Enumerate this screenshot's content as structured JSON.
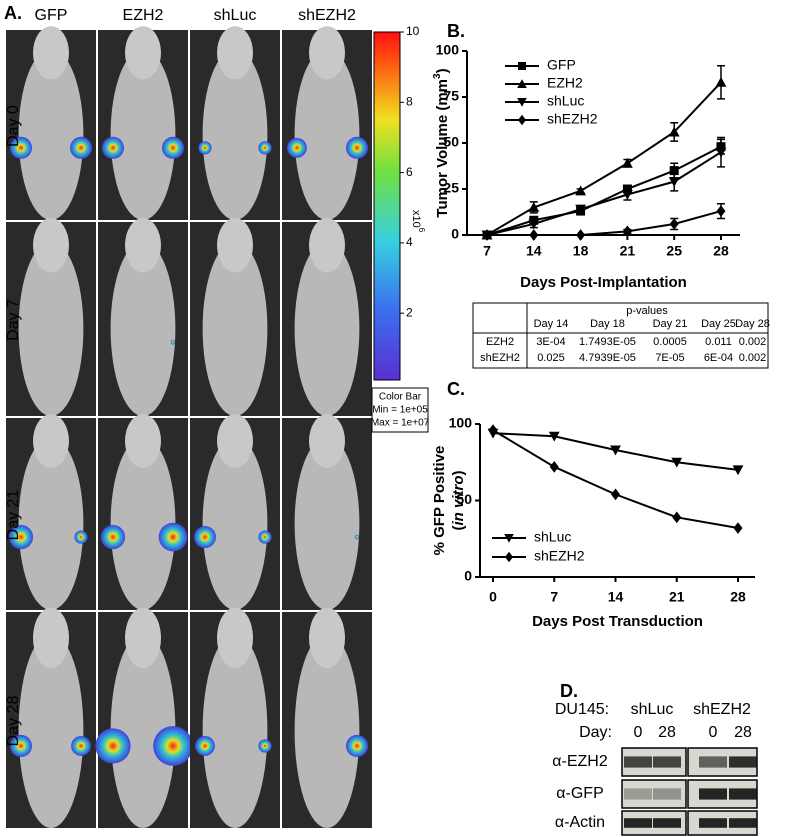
{
  "panel_labels": [
    "A.",
    "B.",
    "C.",
    "D."
  ],
  "panel_a": {
    "columns": [
      "GFP",
      "EZH2",
      "shLuc",
      "shEZH2"
    ],
    "rows": [
      "Day 0",
      "Day 7",
      "Day 21",
      "Day 28"
    ],
    "colorbar": {
      "lim": [
        0.1,
        10
      ],
      "ticks": [
        2,
        4,
        6,
        8,
        10
      ],
      "unit": "x10",
      "unit_exp": "6"
    },
    "colorbar_box": [
      "Color Bar",
      "Min = 1e+05",
      "Max = 1e+07"
    ]
  },
  "chart_data": [
    {
      "type": "line",
      "ylabel": {
        "text": "Tumor Volume (mm",
        "sup": "3",
        "end": ")"
      },
      "xlabel": "Days Post-Implantation",
      "categories": [
        "7",
        "14",
        "18",
        "21",
        "25",
        "28"
      ],
      "ylim": [
        0,
        100
      ],
      "yticks": [
        0,
        25,
        50,
        75,
        100
      ],
      "legend": "upper left",
      "series": [
        {
          "name": "GFP",
          "color": "#000000",
          "marker": "square",
          "values": [
            0,
            8,
            13,
            25,
            35,
            48
          ],
          "errors": [
            0,
            1,
            2,
            2,
            4,
            4
          ]
        },
        {
          "name": "EZH2",
          "color": "#000000",
          "marker": "triangle",
          "values": [
            0,
            15,
            24,
            39,
            56,
            83
          ],
          "errors": [
            0,
            3,
            1,
            2,
            5,
            9
          ]
        },
        {
          "name": "shLuc",
          "color": "#000000",
          "marker": "triangle-down",
          "values": [
            0,
            6,
            14,
            22,
            29,
            45
          ],
          "errors": [
            0,
            2,
            2,
            3,
            5,
            8
          ]
        },
        {
          "name": "shEZH2",
          "color": "#000000",
          "marker": "diamond",
          "values": [
            0,
            0,
            0,
            2,
            6,
            13
          ],
          "errors": [
            0,
            0,
            0,
            1,
            3,
            4
          ]
        }
      ]
    },
    {
      "type": "line",
      "ylabel": {
        "text": "% GFP Positive",
        "sub": "in vitro"
      },
      "xlabel": "Days Post Transduction",
      "categories": [
        "0",
        "7",
        "14",
        "21",
        "28"
      ],
      "ylim": [
        0,
        100
      ],
      "yticks": [
        0,
        50,
        100
      ],
      "legend": "lower left",
      "series": [
        {
          "name": "shLuc",
          "color": "#000000",
          "marker": "triangle-down",
          "values": [
            94,
            92,
            83,
            75,
            70
          ]
        },
        {
          "name": "shEZH2",
          "color": "#000000",
          "marker": "diamond",
          "values": [
            96,
            72,
            54,
            39,
            32
          ]
        }
      ]
    }
  ],
  "table": {
    "title": "p-values",
    "header": [
      "Day 14",
      "Day 18",
      "Day 21",
      "Day 25",
      "Day 28"
    ],
    "rows": [
      [
        "EZH2",
        "3E-04",
        "1.7493E-05",
        "0.0005",
        "0.011",
        "0.002"
      ],
      [
        "shEZH2",
        "0.025",
        "4.7939E-05",
        "7E-05",
        "6E-04",
        "0.002"
      ]
    ]
  },
  "panel_d": {
    "cell_line": "DU145:",
    "groups": [
      "shLuc",
      "shEZH2"
    ],
    "day_label": "Day:",
    "days": [
      "0",
      "28",
      "0",
      "28"
    ],
    "antibodies": [
      "α-EZH2",
      "α-GFP",
      "α-Actin"
    ]
  }
}
